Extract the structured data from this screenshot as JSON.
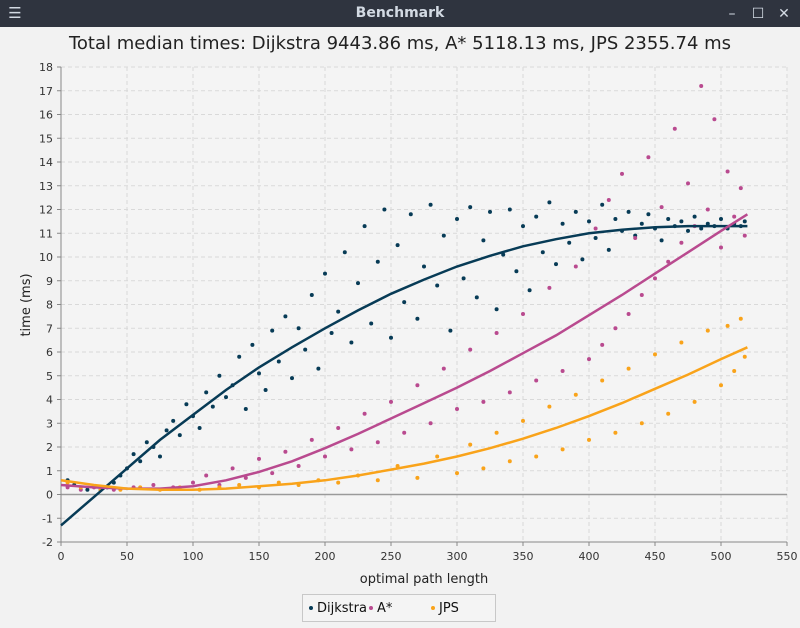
{
  "window": {
    "title": "Benchmark",
    "menu_icon": "hamburger-icon",
    "buttons": [
      "minimize-icon",
      "maximize-icon",
      "close-icon"
    ]
  },
  "chart_data": {
    "type": "scatter",
    "title": "Total median times: Dijkstra 9443.86 ms, A* 5118.13 ms, JPS 2355.74 ms",
    "xlabel": "optimal path length",
    "ylabel": "time (ms)",
    "xlim": [
      0,
      550
    ],
    "ylim": [
      -2,
      18
    ],
    "xticks": [
      0,
      50,
      100,
      150,
      200,
      250,
      300,
      350,
      400,
      450,
      500,
      550
    ],
    "yticks": [
      -2,
      -1,
      0,
      1,
      2,
      3,
      4,
      5,
      6,
      7,
      8,
      9,
      10,
      11,
      12,
      13,
      14,
      15,
      16,
      17,
      18
    ],
    "grid": true,
    "legend_position": "bottom",
    "series": [
      {
        "name": "Dijkstra",
        "color": "#073b56",
        "trend_x": [
          0,
          25,
          50,
          75,
          100,
          125,
          150,
          175,
          200,
          225,
          250,
          275,
          300,
          325,
          350,
          375,
          400,
          425,
          450,
          475,
          500,
          520
        ],
        "trend_y": [
          -1.3,
          -0.1,
          1.1,
          2.3,
          3.35,
          4.4,
          5.35,
          6.2,
          7.0,
          7.75,
          8.45,
          9.05,
          9.6,
          10.05,
          10.45,
          10.75,
          11.0,
          11.15,
          11.25,
          11.3,
          11.3,
          11.3
        ],
        "points": [
          [
            5,
            0.6
          ],
          [
            10,
            0.4
          ],
          [
            20,
            0.2
          ],
          [
            30,
            0.2
          ],
          [
            35,
            0.3
          ],
          [
            40,
            0.5
          ],
          [
            45,
            0.8
          ],
          [
            50,
            1.1
          ],
          [
            55,
            1.7
          ],
          [
            60,
            1.4
          ],
          [
            65,
            2.2
          ],
          [
            70,
            2.0
          ],
          [
            75,
            1.6
          ],
          [
            80,
            2.7
          ],
          [
            85,
            3.1
          ],
          [
            90,
            2.5
          ],
          [
            95,
            3.8
          ],
          [
            100,
            3.3
          ],
          [
            105,
            2.8
          ],
          [
            110,
            4.3
          ],
          [
            115,
            3.7
          ],
          [
            120,
            5.0
          ],
          [
            125,
            4.1
          ],
          [
            130,
            4.6
          ],
          [
            135,
            5.8
          ],
          [
            140,
            3.6
          ],
          [
            145,
            6.3
          ],
          [
            150,
            5.1
          ],
          [
            155,
            4.4
          ],
          [
            160,
            6.9
          ],
          [
            165,
            5.6
          ],
          [
            170,
            7.5
          ],
          [
            175,
            4.9
          ],
          [
            180,
            7.0
          ],
          [
            185,
            6.1
          ],
          [
            190,
            8.4
          ],
          [
            195,
            5.3
          ],
          [
            200,
            9.3
          ],
          [
            205,
            6.8
          ],
          [
            210,
            7.7
          ],
          [
            215,
            10.2
          ],
          [
            220,
            6.4
          ],
          [
            225,
            8.9
          ],
          [
            230,
            11.3
          ],
          [
            235,
            7.2
          ],
          [
            240,
            9.8
          ],
          [
            245,
            12.0
          ],
          [
            250,
            6.6
          ],
          [
            255,
            10.5
          ],
          [
            260,
            8.1
          ],
          [
            265,
            11.8
          ],
          [
            270,
            7.4
          ],
          [
            275,
            9.6
          ],
          [
            280,
            12.2
          ],
          [
            285,
            8.8
          ],
          [
            290,
            10.9
          ],
          [
            295,
            6.9
          ],
          [
            300,
            11.6
          ],
          [
            305,
            9.1
          ],
          [
            310,
            12.1
          ],
          [
            315,
            8.3
          ],
          [
            320,
            10.7
          ],
          [
            325,
            11.9
          ],
          [
            330,
            7.8
          ],
          [
            335,
            10.1
          ],
          [
            340,
            12.0
          ],
          [
            345,
            9.4
          ],
          [
            350,
            11.3
          ],
          [
            355,
            8.6
          ],
          [
            360,
            11.7
          ],
          [
            365,
            10.2
          ],
          [
            370,
            12.3
          ],
          [
            375,
            9.7
          ],
          [
            380,
            11.4
          ],
          [
            385,
            10.6
          ],
          [
            390,
            11.9
          ],
          [
            395,
            9.9
          ],
          [
            400,
            11.5
          ],
          [
            405,
            10.8
          ],
          [
            410,
            12.2
          ],
          [
            415,
            10.3
          ],
          [
            420,
            11.6
          ],
          [
            425,
            11.1
          ],
          [
            430,
            11.9
          ],
          [
            435,
            10.9
          ],
          [
            440,
            11.4
          ],
          [
            445,
            11.8
          ],
          [
            450,
            11.2
          ],
          [
            455,
            10.7
          ],
          [
            460,
            11.6
          ],
          [
            465,
            11.3
          ],
          [
            470,
            11.5
          ],
          [
            475,
            11.1
          ],
          [
            480,
            11.7
          ],
          [
            485,
            11.2
          ],
          [
            490,
            11.4
          ],
          [
            495,
            11.3
          ],
          [
            500,
            11.6
          ],
          [
            505,
            11.2
          ],
          [
            510,
            11.4
          ],
          [
            515,
            11.3
          ],
          [
            518,
            11.5
          ]
        ]
      },
      {
        "name": "A*",
        "color": "#b94a8f",
        "trend_x": [
          0,
          25,
          50,
          75,
          100,
          125,
          150,
          175,
          200,
          225,
          250,
          275,
          300,
          325,
          350,
          375,
          400,
          425,
          450,
          475,
          500,
          520
        ],
        "trend_y": [
          0.4,
          0.3,
          0.25,
          0.25,
          0.35,
          0.6,
          0.95,
          1.4,
          1.95,
          2.55,
          3.2,
          3.85,
          4.5,
          5.2,
          5.95,
          6.7,
          7.55,
          8.4,
          9.3,
          10.2,
          11.1,
          11.8
        ],
        "points": [
          [
            5,
            0.3
          ],
          [
            15,
            0.2
          ],
          [
            25,
            0.3
          ],
          [
            40,
            0.2
          ],
          [
            55,
            0.3
          ],
          [
            70,
            0.4
          ],
          [
            85,
            0.3
          ],
          [
            100,
            0.5
          ],
          [
            110,
            0.8
          ],
          [
            120,
            0.4
          ],
          [
            130,
            1.1
          ],
          [
            140,
            0.7
          ],
          [
            150,
            1.5
          ],
          [
            160,
            0.9
          ],
          [
            170,
            1.8
          ],
          [
            180,
            1.2
          ],
          [
            190,
            2.3
          ],
          [
            200,
            1.6
          ],
          [
            210,
            2.8
          ],
          [
            220,
            1.9
          ],
          [
            230,
            3.4
          ],
          [
            240,
            2.2
          ],
          [
            250,
            3.9
          ],
          [
            260,
            2.6
          ],
          [
            270,
            4.6
          ],
          [
            280,
            3.0
          ],
          [
            290,
            5.3
          ],
          [
            300,
            3.6
          ],
          [
            310,
            6.1
          ],
          [
            320,
            3.9
          ],
          [
            330,
            6.8
          ],
          [
            340,
            4.3
          ],
          [
            350,
            7.6
          ],
          [
            360,
            4.8
          ],
          [
            370,
            8.7
          ],
          [
            380,
            5.2
          ],
          [
            390,
            9.6
          ],
          [
            400,
            5.7
          ],
          [
            405,
            11.2
          ],
          [
            410,
            6.3
          ],
          [
            415,
            12.4
          ],
          [
            420,
            7.0
          ],
          [
            425,
            13.5
          ],
          [
            430,
            7.6
          ],
          [
            435,
            10.8
          ],
          [
            440,
            8.4
          ],
          [
            445,
            14.2
          ],
          [
            450,
            9.1
          ],
          [
            455,
            12.1
          ],
          [
            460,
            9.8
          ],
          [
            465,
            15.4
          ],
          [
            470,
            10.6
          ],
          [
            475,
            13.1
          ],
          [
            480,
            11.3
          ],
          [
            485,
            17.2
          ],
          [
            490,
            12.0
          ],
          [
            495,
            15.8
          ],
          [
            500,
            10.4
          ],
          [
            505,
            13.6
          ],
          [
            510,
            11.7
          ],
          [
            515,
            12.9
          ],
          [
            518,
            10.9
          ]
        ]
      },
      {
        "name": "JPS",
        "color": "#f9a31a",
        "trend_x": [
          0,
          25,
          50,
          75,
          100,
          125,
          150,
          175,
          200,
          225,
          250,
          275,
          300,
          325,
          350,
          375,
          400,
          425,
          450,
          475,
          500,
          520
        ],
        "trend_y": [
          0.6,
          0.4,
          0.25,
          0.2,
          0.2,
          0.25,
          0.35,
          0.45,
          0.6,
          0.8,
          1.05,
          1.3,
          1.6,
          1.95,
          2.35,
          2.8,
          3.3,
          3.85,
          4.45,
          5.05,
          5.7,
          6.2
        ],
        "points": [
          [
            5,
            0.5
          ],
          [
            15,
            0.3
          ],
          [
            30,
            0.2
          ],
          [
            45,
            0.2
          ],
          [
            60,
            0.3
          ],
          [
            75,
            0.2
          ],
          [
            90,
            0.3
          ],
          [
            105,
            0.2
          ],
          [
            120,
            0.3
          ],
          [
            135,
            0.4
          ],
          [
            150,
            0.3
          ],
          [
            165,
            0.5
          ],
          [
            180,
            0.4
          ],
          [
            195,
            0.6
          ],
          [
            210,
            0.5
          ],
          [
            225,
            0.8
          ],
          [
            240,
            0.6
          ],
          [
            255,
            1.2
          ],
          [
            270,
            0.7
          ],
          [
            285,
            1.6
          ],
          [
            300,
            0.9
          ],
          [
            310,
            2.1
          ],
          [
            320,
            1.1
          ],
          [
            330,
            2.6
          ],
          [
            340,
            1.4
          ],
          [
            350,
            3.1
          ],
          [
            360,
            1.6
          ],
          [
            370,
            3.7
          ],
          [
            380,
            1.9
          ],
          [
            390,
            4.2
          ],
          [
            400,
            2.3
          ],
          [
            410,
            4.8
          ],
          [
            420,
            2.6
          ],
          [
            430,
            5.3
          ],
          [
            440,
            3.0
          ],
          [
            450,
            5.9
          ],
          [
            460,
            3.4
          ],
          [
            470,
            6.4
          ],
          [
            480,
            3.9
          ],
          [
            490,
            6.9
          ],
          [
            500,
            4.6
          ],
          [
            505,
            7.1
          ],
          [
            510,
            5.2
          ],
          [
            515,
            7.4
          ],
          [
            518,
            5.8
          ]
        ]
      }
    ]
  }
}
